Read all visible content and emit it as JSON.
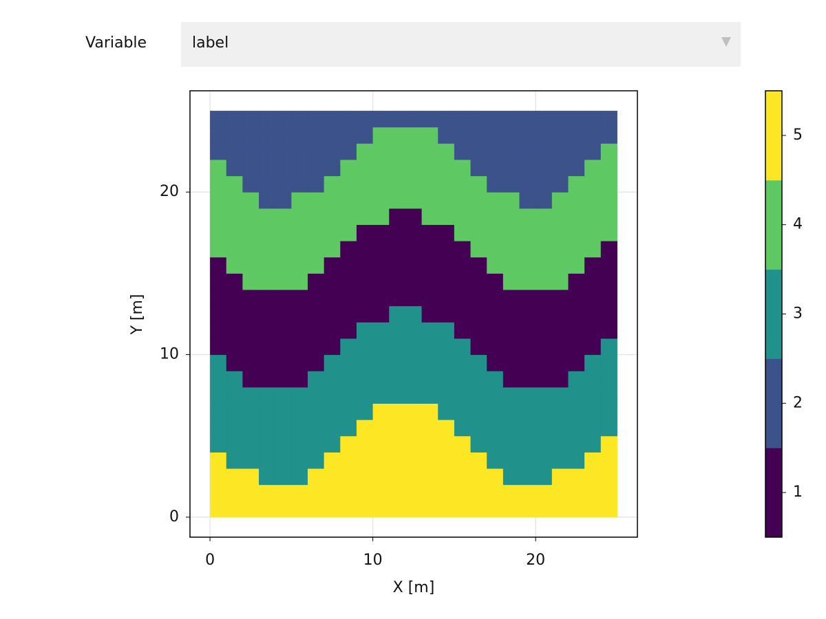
{
  "controls": {
    "label": "Variable",
    "selected": "label"
  },
  "chart_data": {
    "type": "heatmap",
    "xlabel": "X [m]",
    "ylabel": "Y [m]",
    "xbins": [
      0,
      1,
      2,
      3,
      4,
      5,
      6,
      7,
      8,
      9,
      10,
      11,
      12,
      13,
      14,
      15,
      16,
      17,
      18,
      19,
      20,
      21,
      22,
      23,
      24,
      25
    ],
    "ybins": [
      0,
      1,
      2,
      3,
      4,
      5,
      6,
      7,
      8,
      9,
      10,
      11,
      12,
      13,
      14,
      15,
      16,
      17,
      18,
      19,
      20,
      21,
      22,
      23,
      24,
      25
    ],
    "z": [
      [
        5,
        5,
        5,
        5,
        5,
        5,
        5,
        5,
        5,
        5,
        5,
        5,
        5,
        5,
        5,
        5,
        5,
        5,
        5,
        5,
        5,
        5,
        5,
        5,
        5
      ],
      [
        5,
        5,
        5,
        5,
        5,
        5,
        5,
        5,
        5,
        5,
        5,
        5,
        5,
        5,
        5,
        5,
        5,
        5,
        5,
        5,
        5,
        5,
        5,
        5,
        5
      ],
      [
        5,
        5,
        5,
        3,
        3,
        3,
        5,
        5,
        5,
        5,
        5,
        5,
        5,
        5,
        5,
        5,
        5,
        5,
        3,
        3,
        3,
        5,
        5,
        5,
        5
      ],
      [
        5,
        3,
        3,
        3,
        3,
        3,
        3,
        5,
        5,
        5,
        5,
        5,
        5,
        5,
        5,
        5,
        5,
        3,
        3,
        3,
        3,
        3,
        3,
        5,
        5
      ],
      [
        3,
        3,
        3,
        3,
        3,
        3,
        3,
        3,
        5,
        5,
        5,
        5,
        5,
        5,
        5,
        5,
        3,
        3,
        3,
        3,
        3,
        3,
        3,
        3,
        5
      ],
      [
        3,
        3,
        3,
        3,
        3,
        3,
        3,
        3,
        3,
        5,
        5,
        5,
        5,
        5,
        5,
        3,
        3,
        3,
        3,
        3,
        3,
        3,
        3,
        3,
        3
      ],
      [
        3,
        3,
        3,
        3,
        3,
        3,
        3,
        3,
        3,
        3,
        5,
        5,
        5,
        5,
        3,
        3,
        3,
        3,
        3,
        3,
        3,
        3,
        3,
        3,
        3
      ],
      [
        3,
        3,
        3,
        3,
        3,
        3,
        3,
        3,
        3,
        3,
        3,
        3,
        3,
        3,
        3,
        3,
        3,
        3,
        3,
        3,
        3,
        3,
        3,
        3,
        3
      ],
      [
        3,
        3,
        1,
        1,
        1,
        1,
        3,
        3,
        3,
        3,
        3,
        3,
        3,
        3,
        3,
        3,
        3,
        3,
        1,
        1,
        1,
        1,
        3,
        3,
        3
      ],
      [
        3,
        1,
        1,
        1,
        1,
        1,
        1,
        3,
        3,
        3,
        3,
        3,
        3,
        3,
        3,
        3,
        3,
        1,
        1,
        1,
        1,
        1,
        1,
        3,
        3
      ],
      [
        1,
        1,
        1,
        1,
        1,
        1,
        1,
        1,
        3,
        3,
        3,
        3,
        3,
        3,
        3,
        3,
        1,
        1,
        1,
        1,
        1,
        1,
        1,
        1,
        3
      ],
      [
        1,
        1,
        1,
        1,
        1,
        1,
        1,
        1,
        1,
        3,
        3,
        3,
        3,
        3,
        3,
        1,
        1,
        1,
        1,
        1,
        1,
        1,
        1,
        1,
        1
      ],
      [
        1,
        1,
        1,
        1,
        1,
        1,
        1,
        1,
        1,
        1,
        1,
        3,
        3,
        1,
        1,
        1,
        1,
        1,
        1,
        1,
        1,
        1,
        1,
        1,
        1
      ],
      [
        1,
        1,
        1,
        1,
        1,
        1,
        1,
        1,
        1,
        1,
        1,
        1,
        1,
        1,
        1,
        1,
        1,
        1,
        1,
        1,
        1,
        1,
        1,
        1,
        1
      ],
      [
        1,
        1,
        4,
        4,
        4,
        4,
        1,
        1,
        1,
        1,
        1,
        1,
        1,
        1,
        1,
        1,
        1,
        1,
        4,
        4,
        4,
        4,
        1,
        1,
        1
      ],
      [
        1,
        4,
        4,
        4,
        4,
        4,
        4,
        1,
        1,
        1,
        1,
        1,
        1,
        1,
        1,
        1,
        1,
        4,
        4,
        4,
        4,
        4,
        4,
        1,
        1
      ],
      [
        4,
        4,
        4,
        4,
        4,
        4,
        4,
        4,
        1,
        1,
        1,
        1,
        1,
        1,
        1,
        1,
        4,
        4,
        4,
        4,
        4,
        4,
        4,
        4,
        1
      ],
      [
        4,
        4,
        4,
        4,
        4,
        4,
        4,
        4,
        4,
        1,
        1,
        1,
        1,
        1,
        1,
        4,
        4,
        4,
        4,
        4,
        4,
        4,
        4,
        4,
        4
      ],
      [
        4,
        4,
        4,
        4,
        4,
        4,
        4,
        4,
        4,
        4,
        4,
        1,
        1,
        4,
        4,
        4,
        4,
        4,
        4,
        4,
        4,
        4,
        4,
        4,
        4
      ],
      [
        4,
        4,
        4,
        2,
        2,
        4,
        4,
        4,
        4,
        4,
        4,
        4,
        4,
        4,
        4,
        4,
        4,
        4,
        4,
        2,
        2,
        4,
        4,
        4,
        4
      ],
      [
        4,
        4,
        2,
        2,
        2,
        2,
        2,
        4,
        4,
        4,
        4,
        4,
        4,
        4,
        4,
        4,
        4,
        2,
        2,
        2,
        2,
        2,
        4,
        4,
        4
      ],
      [
        4,
        2,
        2,
        2,
        2,
        2,
        2,
        2,
        4,
        4,
        4,
        4,
        4,
        4,
        4,
        4,
        2,
        2,
        2,
        2,
        2,
        2,
        2,
        4,
        4
      ],
      [
        2,
        2,
        2,
        2,
        2,
        2,
        2,
        2,
        2,
        4,
        4,
        4,
        4,
        4,
        4,
        2,
        2,
        2,
        2,
        2,
        2,
        2,
        2,
        2,
        4
      ],
      [
        2,
        2,
        2,
        2,
        2,
        2,
        2,
        2,
        2,
        2,
        4,
        4,
        4,
        4,
        2,
        2,
        2,
        2,
        2,
        2,
        2,
        2,
        2,
        2,
        2
      ],
      [
        2,
        2,
        2,
        2,
        2,
        2,
        2,
        2,
        2,
        2,
        2,
        2,
        2,
        2,
        2,
        2,
        2,
        2,
        2,
        2,
        2,
        2,
        2,
        2,
        2
      ]
    ],
    "colormap": [
      "#440154",
      "#3b528b",
      "#21918c",
      "#5ec962",
      "#fde725"
    ],
    "clim": [
      0.5,
      5.5
    ],
    "cticks": [
      1,
      2,
      3,
      4,
      5
    ],
    "xlim": [
      -1.23,
      26.25
    ],
    "ylim": [
      -1.23,
      26.23
    ],
    "xticks": [
      0,
      10,
      20
    ],
    "yticks": [
      0,
      10,
      20
    ],
    "grid": true
  }
}
